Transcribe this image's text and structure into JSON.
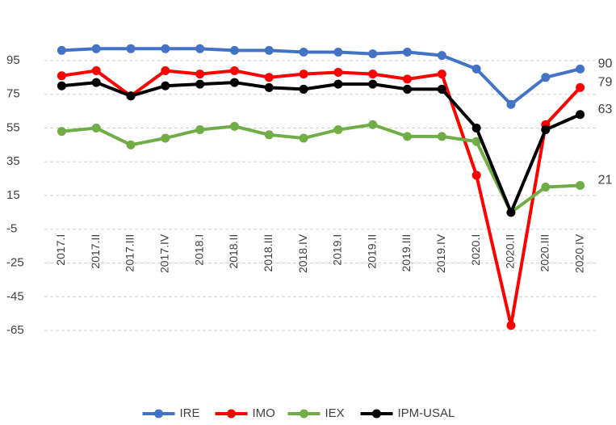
{
  "chart_data": {
    "type": "line",
    "categories": [
      "2017.I",
      "2017.II",
      "2017.III",
      "2017.IV",
      "2018.I",
      "2018.II",
      "2018.III",
      "2018.IV",
      "2019.I",
      "2019.II",
      "2019.III",
      "2019.IV",
      "2020.I",
      "2020.II",
      "2020.III",
      "2020.IV"
    ],
    "series": [
      {
        "name": "IRE",
        "color": "#4472c4",
        "values": [
          101,
          102,
          102,
          102,
          102,
          101,
          101,
          100,
          100,
          99,
          100,
          98,
          90,
          69,
          85,
          90
        ]
      },
      {
        "name": "IMO",
        "color": "#ff0000",
        "values": [
          86,
          89,
          74,
          89,
          87,
          89,
          85,
          87,
          88,
          87,
          84,
          87,
          27,
          -62,
          57,
          79
        ]
      },
      {
        "name": "IEX",
        "color": "#70ad47",
        "values": [
          53,
          55,
          45,
          49,
          54,
          56,
          51,
          49,
          54,
          57,
          50,
          50,
          47,
          5,
          20,
          21
        ]
      },
      {
        "name": "IPM-USAL",
        "color": "#000000",
        "values": [
          80,
          82,
          74,
          80,
          81,
          82,
          79,
          78,
          81,
          81,
          78,
          78,
          55,
          5,
          54,
          63
        ]
      }
    ],
    "ylim": [
      -70,
      110
    ],
    "yticks": [
      -65,
      -45,
      -25,
      -5,
      15,
      35,
      55,
      75,
      95
    ],
    "grid": true,
    "data_labels": "last",
    "legend": "bottom"
  }
}
